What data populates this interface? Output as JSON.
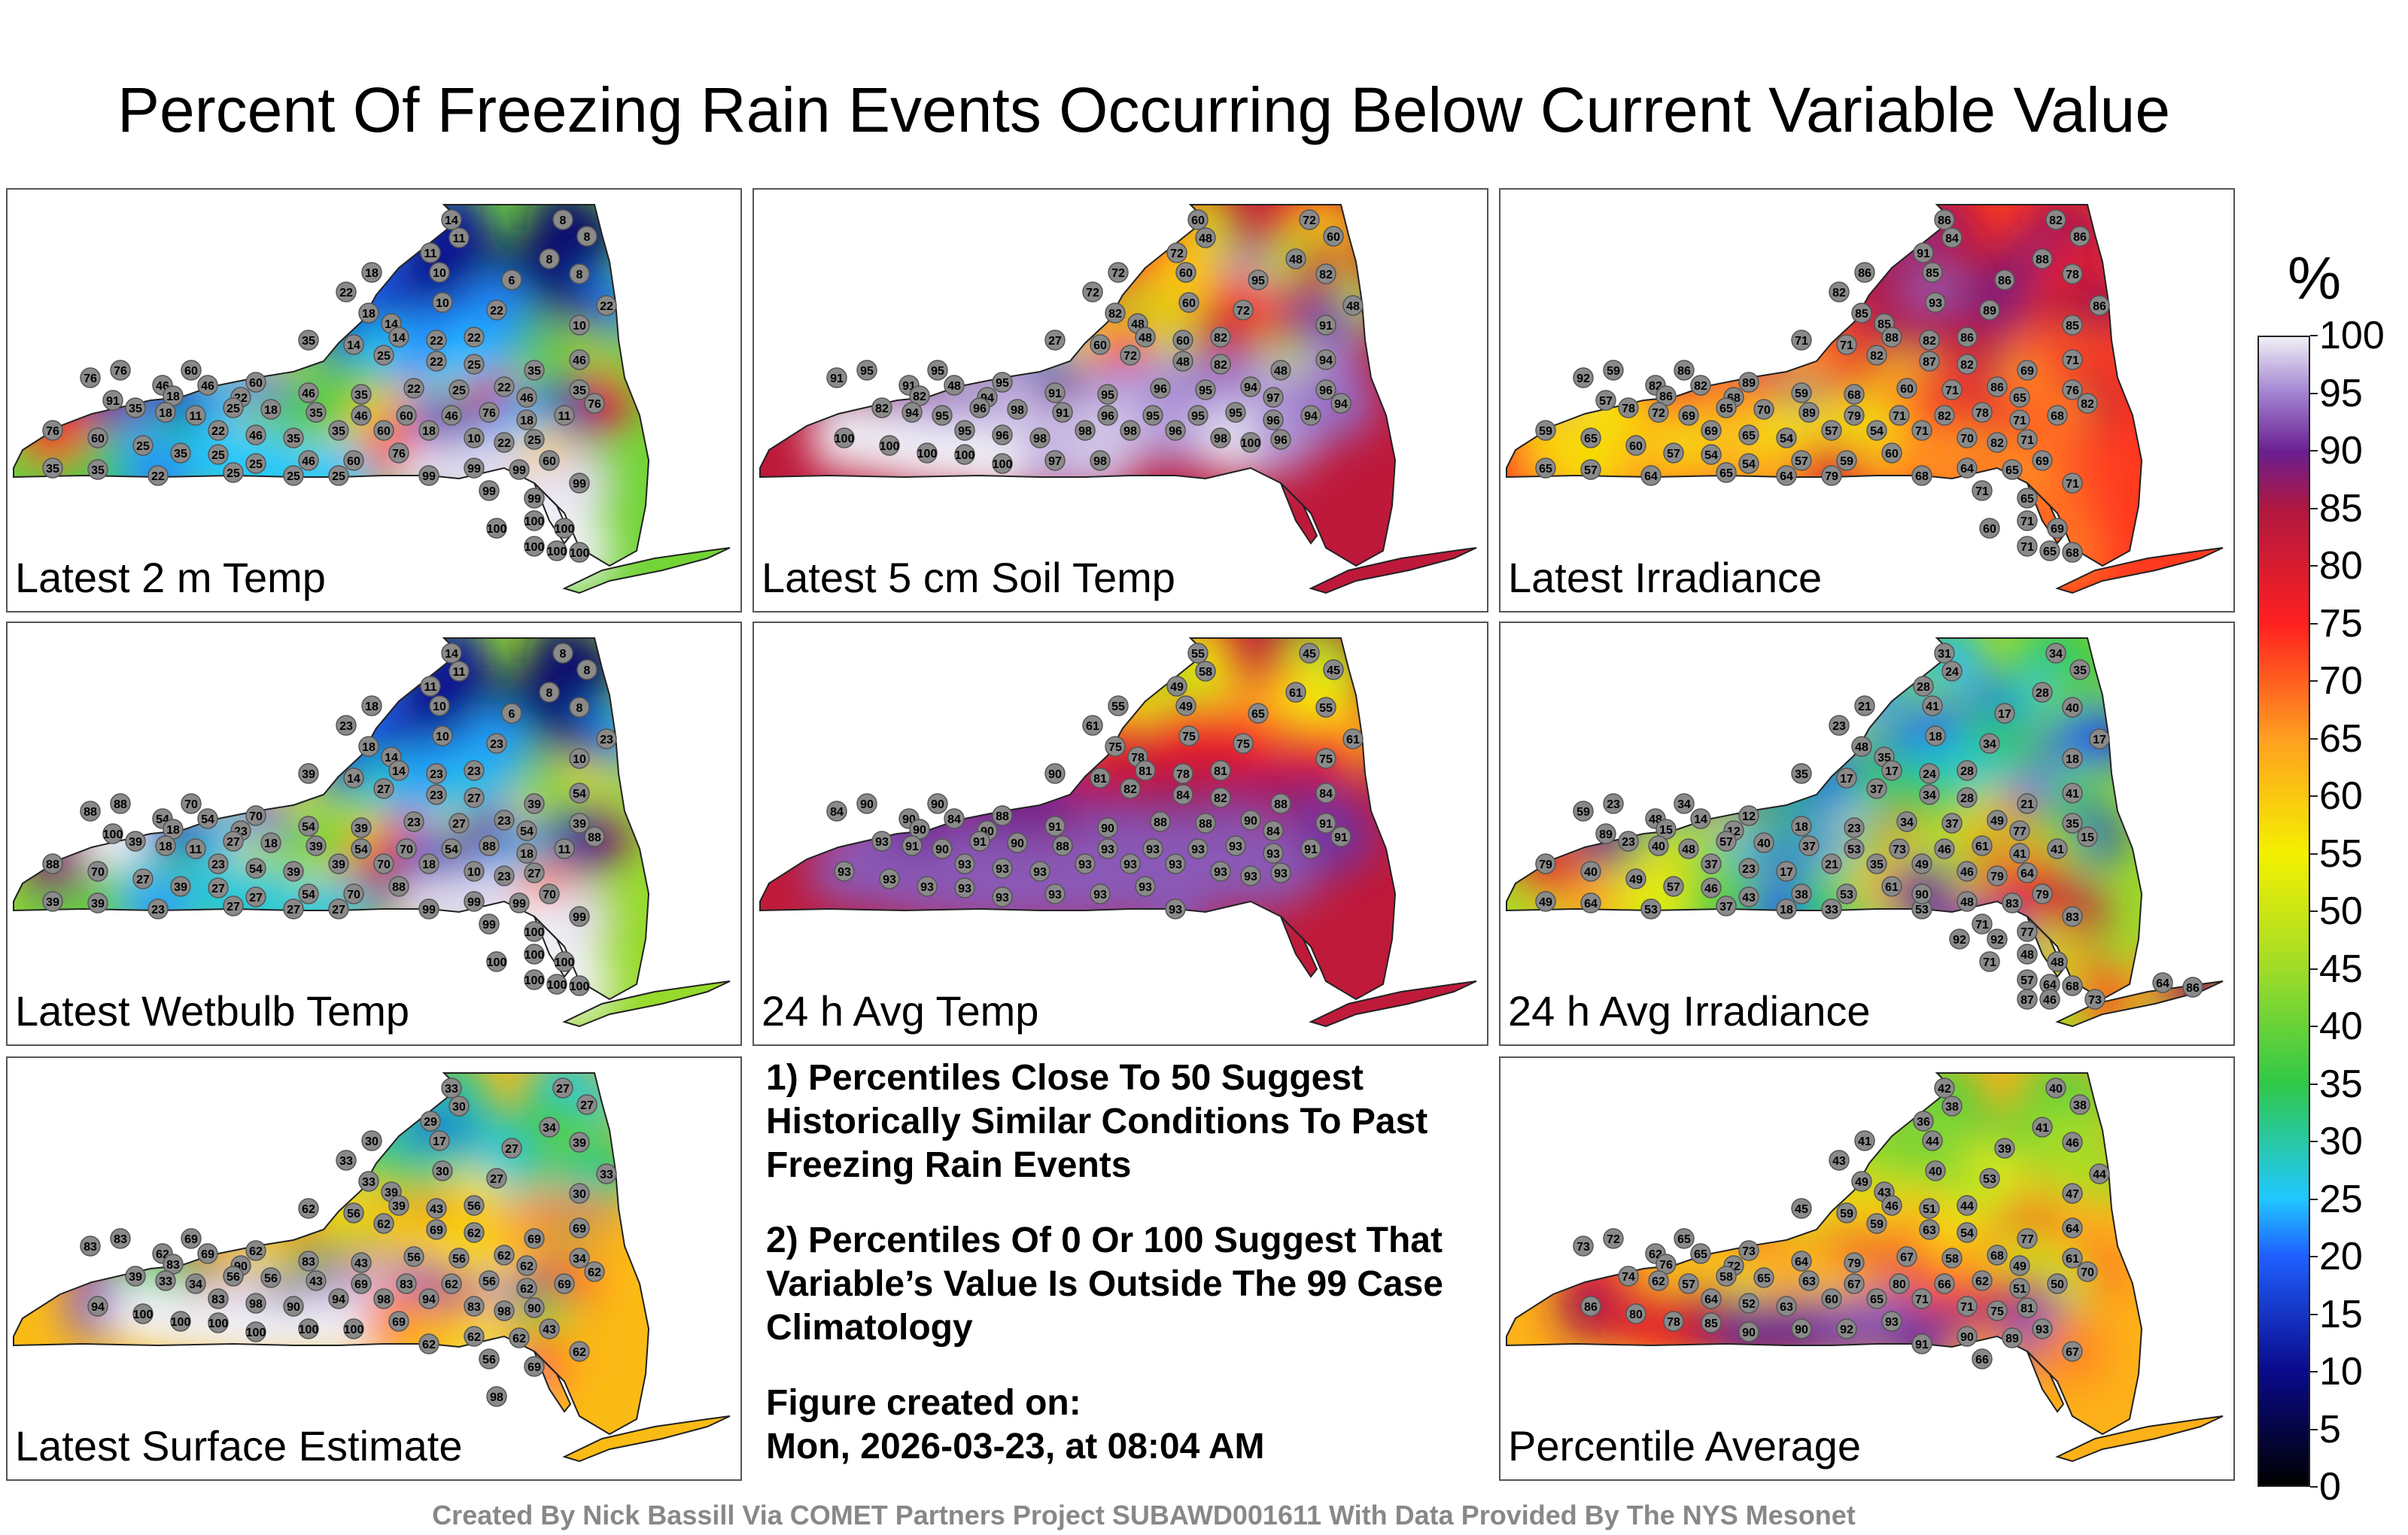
{
  "title": "Percent Of Freezing Rain Events Occurring Below Current Variable Value",
  "panels": [
    {
      "label": "Latest 2 m Temp",
      "station_values": [
        14,
        8,
        8,
        11,
        18,
        11,
        10,
        6,
        8,
        8,
        22,
        10,
        22,
        18,
        14,
        22,
        10,
        14,
        22,
        22,
        35,
        14,
        25,
        22,
        25,
        46,
        35,
        76,
        60,
        76,
        46,
        46,
        60,
        18,
        22,
        46,
        35,
        22,
        25,
        22,
        46,
        35,
        76,
        35,
        18,
        11,
        25,
        18,
        35,
        46,
        60,
        46,
        76,
        18,
        11,
        22,
        46,
        35,
        35,
        60,
        18,
        10,
        22,
        25,
        60,
        25,
        35,
        25,
        25,
        46,
        60,
        76,
        99,
        99,
        99,
        60,
        99,
        99,
        99,
        100,
        100,
        100,
        100,
        100,
        100,
        35,
        35,
        22,
        25,
        25,
        25,
        76,
        91
      ],
      "color_mode": "cold-north"
    },
    {
      "label": "Latest 5 cm Soil Temp",
      "station_values": [
        60,
        72,
        60,
        48,
        72,
        72,
        60,
        95,
        48,
        82,
        72,
        60,
        48,
        82,
        48,
        72,
        91,
        48,
        60,
        82,
        27,
        60,
        72,
        48,
        82,
        94,
        48,
        95,
        95,
        91,
        91,
        48,
        95,
        82,
        94,
        91,
        95,
        96,
        95,
        94,
        97,
        96,
        94,
        82,
        94,
        95,
        96,
        98,
        91,
        96,
        95,
        95,
        95,
        96,
        94,
        95,
        96,
        98,
        98,
        98,
        96,
        98,
        100,
        96,
        100,
        100,
        100,
        100,
        100,
        97,
        98
      ],
      "color_mode": "warm"
    },
    {
      "label": "Latest Irradiance",
      "station_values": [
        86,
        82,
        86,
        84,
        86,
        91,
        85,
        86,
        88,
        78,
        82,
        93,
        86,
        85,
        85,
        89,
        85,
        88,
        82,
        86,
        71,
        71,
        82,
        87,
        82,
        71,
        69,
        59,
        86,
        92,
        82,
        82,
        89,
        86,
        68,
        59,
        68,
        60,
        71,
        86,
        65,
        76,
        82,
        78,
        72,
        69,
        65,
        70,
        89,
        79,
        71,
        82,
        78,
        71,
        68,
        69,
        65,
        54,
        57,
        54,
        71,
        70,
        82,
        71,
        65,
        60,
        57,
        54,
        54,
        57,
        59,
        60,
        68,
        64,
        65,
        69,
        71,
        71,
        65,
        60,
        71,
        69,
        65,
        68,
        71,
        65,
        57,
        64,
        65,
        64,
        79,
        59,
        57
      ],
      "color_mode": "red-purple"
    },
    {
      "label": "Latest Wetbulb Temp",
      "station_values": [
        14,
        8,
        8,
        11,
        18,
        11,
        10,
        6,
        8,
        8,
        23,
        10,
        23,
        18,
        14,
        23,
        10,
        14,
        23,
        23,
        39,
        14,
        27,
        23,
        27,
        54,
        39,
        88,
        70,
        88,
        54,
        54,
        70,
        18,
        23,
        54,
        39,
        23,
        27,
        23,
        54,
        39,
        88,
        39,
        18,
        11,
        27,
        18,
        39,
        54,
        70,
        54,
        88,
        18,
        11,
        23,
        54,
        39,
        39,
        70,
        18,
        10,
        23,
        27,
        70,
        27,
        39,
        27,
        27,
        54,
        70,
        88,
        99,
        99,
        99,
        70,
        99,
        99,
        100,
        100,
        100,
        100,
        100,
        100,
        100,
        39,
        39,
        23,
        27,
        27,
        27,
        88,
        100
      ],
      "color_mode": "cold-north"
    },
    {
      "label": "24 h Avg Temp",
      "station_values": [
        55,
        45,
        45,
        58,
        55,
        49,
        49,
        65,
        61,
        55,
        61,
        75,
        61,
        75,
        78,
        75,
        75,
        81,
        78,
        81,
        90,
        81,
        82,
        84,
        82,
        84,
        88,
        90,
        90,
        84,
        90,
        84,
        88,
        90,
        90,
        91,
        90,
        88,
        88,
        90,
        84,
        91,
        91,
        93,
        91,
        90,
        91,
        90,
        88,
        93,
        93,
        93,
        93,
        93,
        91,
        93,
        93,
        93,
        93,
        93,
        93,
        93,
        93,
        93,
        93,
        93,
        93,
        93,
        93,
        93,
        93,
        93,
        93
      ],
      "color_mode": "warm"
    },
    {
      "label": "24 h Avg Irradiance",
      "station_values": [
        31,
        34,
        35,
        24,
        21,
        28,
        41,
        17,
        28,
        40,
        23,
        18,
        17,
        48,
        35,
        34,
        18,
        17,
        24,
        28,
        35,
        17,
        37,
        34,
        28,
        41,
        21,
        23,
        34,
        59,
        48,
        14,
        12,
        15,
        12,
        18,
        23,
        34,
        37,
        49,
        77,
        35,
        15,
        23,
        40,
        48,
        57,
        40,
        37,
        53,
        73,
        46,
        61,
        41,
        41,
        37,
        23,
        17,
        21,
        35,
        49,
        46,
        79,
        64,
        40,
        49,
        57,
        46,
        43,
        38,
        53,
        61,
        53,
        48,
        83,
        79,
        83,
        71,
        77,
        71,
        48,
        48,
        64,
        68,
        57,
        49,
        64,
        53,
        37,
        18,
        33,
        79,
        89,
        90,
        92,
        92,
        87,
        73,
        64,
        86,
        46
      ],
      "color_mode": "cold-north-blue"
    },
    {
      "label": "Latest Surface Estimate",
      "station_values": [
        33,
        27,
        27,
        30,
        30,
        29,
        17,
        27,
        34,
        39,
        33,
        30,
        33,
        33,
        39,
        27,
        30,
        39,
        43,
        56,
        62,
        56,
        62,
        69,
        62,
        69,
        69,
        83,
        69,
        83,
        62,
        69,
        62,
        83,
        90,
        83,
        43,
        56,
        56,
        62,
        62,
        34,
        62,
        39,
        33,
        34,
        56,
        56,
        43,
        69,
        83,
        62,
        56,
        62,
        69,
        83,
        98,
        90,
        94,
        98,
        94,
        83,
        98,
        90,
        94,
        100,
        100,
        100,
        100,
        100,
        100,
        69,
        62,
        62,
        62,
        43,
        62,
        56,
        69,
        98
      ],
      "color_mode": "mixed"
    },
    {
      "label": "Percentile Average",
      "station_values": [
        42,
        40,
        38,
        38,
        41,
        36,
        44,
        39,
        41,
        46,
        43,
        40,
        44,
        49,
        43,
        53,
        47,
        46,
        51,
        44,
        45,
        59,
        59,
        63,
        54,
        64,
        77,
        72,
        65,
        73,
        62,
        65,
        73,
        76,
        72,
        64,
        79,
        67,
        58,
        68,
        49,
        61,
        70,
        74,
        62,
        57,
        58,
        65,
        63,
        67,
        80,
        66,
        62,
        51,
        50,
        64,
        52,
        63,
        60,
        65,
        71,
        71,
        75,
        81,
        86,
        80,
        78,
        85,
        90,
        90,
        92,
        93,
        91,
        90,
        89,
        93,
        67,
        66
      ],
      "color_mode": "avg"
    }
  ],
  "notes": {
    "note1": "1) Percentiles Close To 50 Suggest Historically Similar Conditions To Past Freezing Rain Events",
    "note2": "2) Percentiles Of 0 Or 100 Suggest That Variable’s Value Is Outside The 99 Case Climatology",
    "created_label": "Figure created on:",
    "created_value": "Mon, 2026-03-23, at 08:04 AM"
  },
  "colorbar": {
    "unit": "%",
    "min": 0,
    "max": 100,
    "ticks": [
      "100",
      "95",
      "90",
      "85",
      "80",
      "75",
      "70",
      "65",
      "60",
      "55",
      "50",
      "45",
      "40",
      "35",
      "30",
      "25",
      "20",
      "15",
      "10",
      "5",
      "0"
    ]
  },
  "colors": {
    "c0": "#000000",
    "c10": "#0a0a8c",
    "c20": "#2060ff",
    "c25": "#20c8ff",
    "c35": "#30c848",
    "c45": "#a0dc28",
    "c55": "#f4f000",
    "c65": "#ffa020",
    "c75": "#ff2020",
    "c85": "#b01840",
    "c90": "#6a1e90",
    "c95": "#a080d0",
    "c100": "#f0f0f6"
  },
  "footer": "Created By Nick Bassill Via COMET Partners Project SUBAWD001611 With Data Provided By The NYS Mesonet"
}
